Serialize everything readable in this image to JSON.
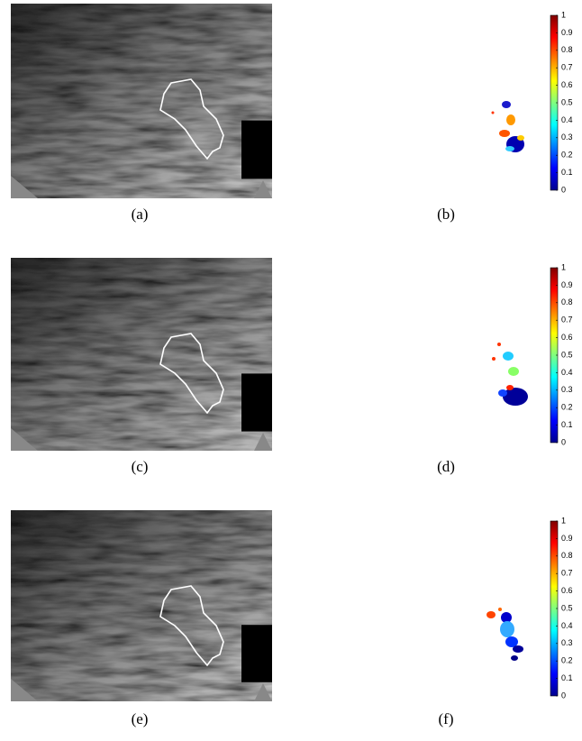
{
  "panels": [
    {
      "caption": "(a)"
    },
    {
      "caption": "(b)"
    },
    {
      "caption": "(c)"
    },
    {
      "caption": "(d)"
    },
    {
      "caption": "(e)"
    },
    {
      "caption": "(f)"
    }
  ],
  "colorbars": [
    {
      "ticks": [
        0,
        0.1,
        0.2,
        0.3,
        0.4,
        0.5,
        0.6,
        0.7,
        0.8,
        0.9,
        1
      ]
    },
    {
      "ticks": [
        0,
        0.1,
        0.2,
        0.3,
        0.4,
        0.5,
        0.6,
        0.7,
        0.8,
        0.9,
        1
      ]
    },
    {
      "ticks": [
        0,
        0.1,
        0.2,
        0.3,
        0.4,
        0.5,
        0.6,
        0.7,
        0.8,
        0.9,
        1
      ]
    }
  ]
}
